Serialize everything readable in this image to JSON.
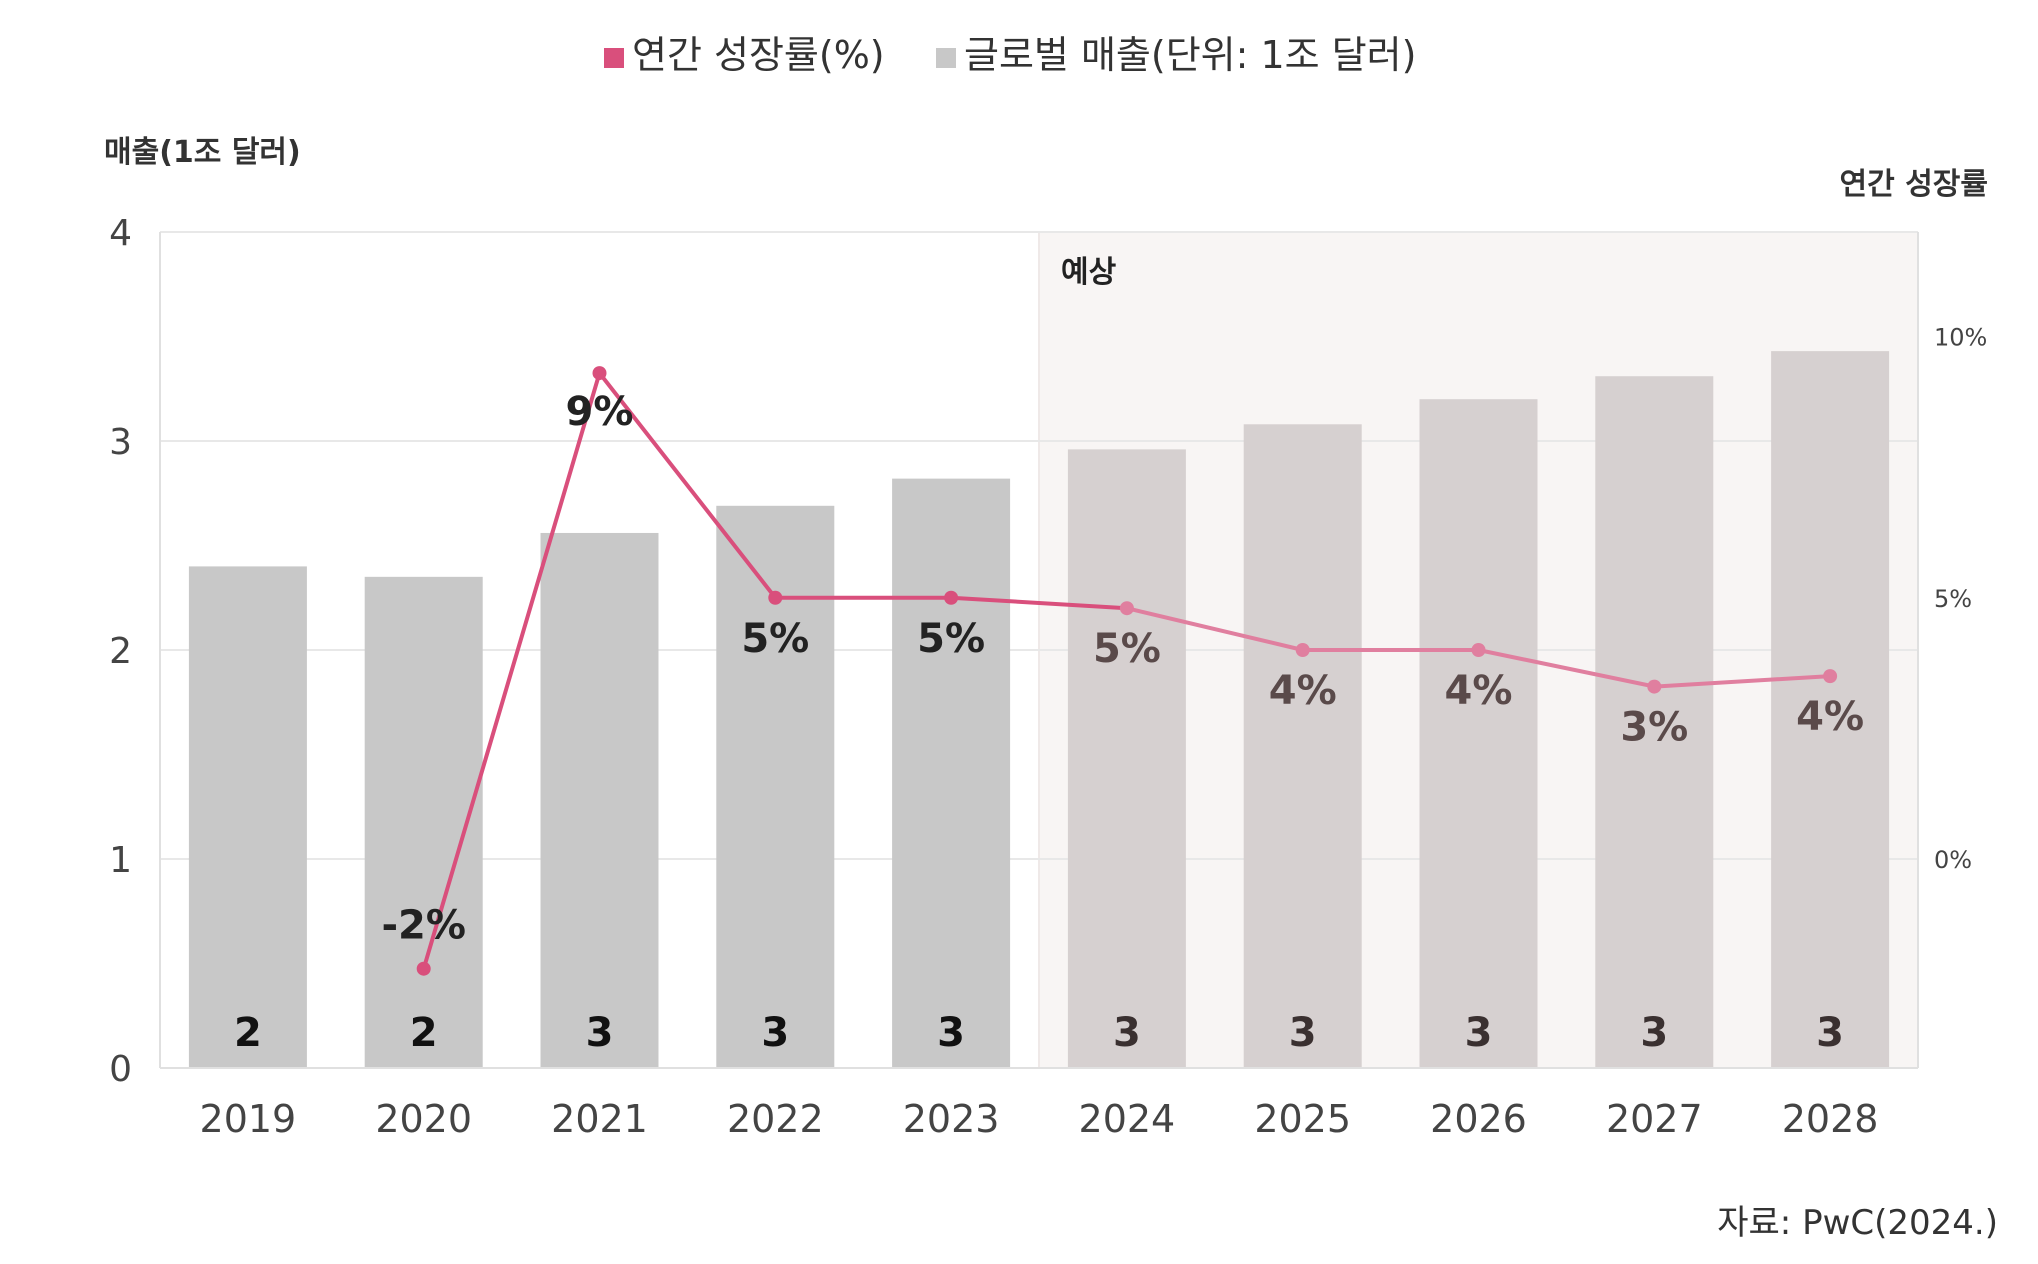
{
  "chart_data": {
    "type": "bar",
    "legend": [
      {
        "label": "연간 성장률(%)",
        "color": "#d94f7c",
        "marker": "square"
      },
      {
        "label": "글로벌 매출(단위: 1조 달러)",
        "color": "#c8c8c8",
        "marker": "square"
      }
    ],
    "ylabel": "매출(1조 달러)",
    "y2label": "연간 성장률",
    "ylim": [
      0,
      4
    ],
    "yticks": [
      "0",
      "1",
      "2",
      "3",
      "4"
    ],
    "y2lim": [
      -4,
      12
    ],
    "y2ticks": [
      {
        "value": 0,
        "label": "0%"
      },
      {
        "value": 5,
        "label": "5%"
      },
      {
        "value": 10,
        "label": "10%"
      }
    ],
    "categories": [
      "2019",
      "2020",
      "2021",
      "2022",
      "2023",
      "2024",
      "2025",
      "2026",
      "2027",
      "2028"
    ],
    "forecast_region_label": "예상",
    "forecast_start_index": 5,
    "series": [
      {
        "name": "글로벌 매출(단위: 1조 달러)",
        "kind": "bar",
        "values": [
          2.4,
          2.35,
          2.56,
          2.69,
          2.82,
          2.96,
          3.08,
          3.2,
          3.31,
          3.43
        ],
        "data_labels": [
          "2",
          "2",
          "3",
          "3",
          "3",
          "3",
          "3",
          "3",
          "3",
          "3"
        ]
      },
      {
        "name": "연간 성장률(%)",
        "kind": "line",
        "axis": "right",
        "values": [
          null,
          -2.1,
          9.3,
          5.0,
          5.0,
          4.8,
          4.0,
          4.0,
          3.3,
          3.5
        ],
        "data_labels": [
          null,
          "-2%",
          "9%",
          "5%",
          "5%",
          "5%",
          "4%",
          "4%",
          "3%",
          "4%"
        ]
      }
    ],
    "colors": {
      "bar_actual": "#c8c8c8",
      "bar_forecast": "#d6d0d0",
      "line_actual": "#d94f7c",
      "line_forecast": "#e07f9f",
      "forecast_bg": "#f8f5f4",
      "grid": "#e8e8e8"
    },
    "grid": true,
    "legend_position": "top-center"
  },
  "source": "자료: PwC(2024.)"
}
